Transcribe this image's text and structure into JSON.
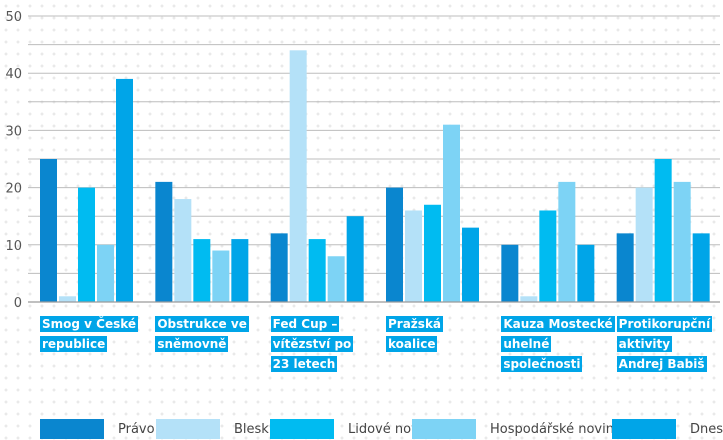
{
  "chart_data": {
    "type": "bar",
    "categories": [
      [
        "Smog v České",
        "republice"
      ],
      [
        "Obstrukce ve",
        "sněmovně"
      ],
      [
        "Fed Cup –",
        "vítězství po",
        "23 letech"
      ],
      [
        "Pražská",
        "koalice"
      ],
      [
        "Kauza Mostecké",
        "uhelné",
        "společnosti"
      ],
      [
        "Protikorupční",
        "aktivity",
        "Andrej Babiš"
      ]
    ],
    "series": [
      {
        "name": "Právo",
        "color": "#0a86cf",
        "values": [
          25,
          21,
          12,
          20,
          10,
          12
        ]
      },
      {
        "name": "Blesk",
        "color": "#b4e1f8",
        "values": [
          1,
          18,
          44,
          16,
          1,
          20
        ]
      },
      {
        "name": "Lidové noviny",
        "color": "#00bbf1",
        "values": [
          20,
          11,
          11,
          17,
          16,
          25
        ]
      },
      {
        "name": "Hospodářské noviny",
        "color": "#7dd3f5",
        "values": [
          10,
          9,
          8,
          31,
          21,
          21
        ]
      },
      {
        "name": "Dnes",
        "color": "#00a5e8",
        "values": [
          39,
          11,
          15,
          13,
          10,
          12
        ]
      }
    ],
    "yticks": [
      0,
      10,
      20,
      30,
      40,
      50
    ],
    "ylim": [
      0,
      50
    ],
    "gridlines": [
      5,
      15,
      25,
      35,
      45
    ],
    "grid": true,
    "legend_position": "bottom",
    "label_background": "#00a5e8"
  }
}
